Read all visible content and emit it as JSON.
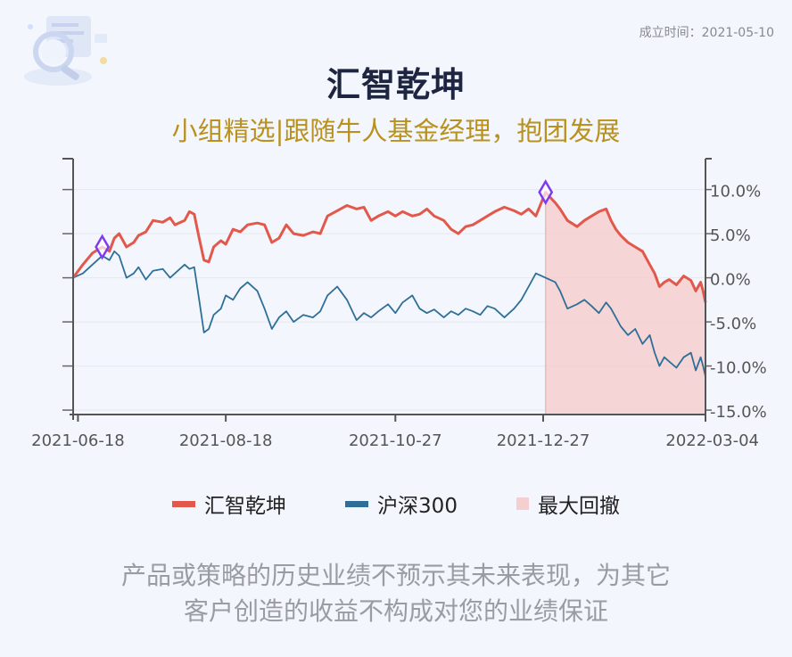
{
  "header": {
    "founded": "成立时间：2021-05-10",
    "title": "汇智乾坤",
    "subtitle": "小组精选|跟随牛人基金经理，抱团发展"
  },
  "colors": {
    "fund": "#e2584a",
    "index": "#2f6f97",
    "drawdown_fill": "#f5cfcf",
    "marker": "#7d3cf0"
  },
  "chart_data": {
    "type": "line",
    "title": "",
    "xlabel": "",
    "ylabel": "",
    "x_ticks": [
      "2021-06-18",
      "2021-08-18",
      "2021-10-27",
      "2021-12-27",
      "2022-03-04"
    ],
    "y_ticks": [
      "10.0%",
      "5.0%",
      "0.0%",
      "-5.0%",
      "-10.0%",
      "-15.0%"
    ],
    "ylim": [
      -15.5,
      13.5
    ],
    "x_range": [
      "2021-06-16",
      "2022-03-04"
    ],
    "grid": true,
    "legend_position": "bottom",
    "series": [
      {
        "name": "汇智乾坤",
        "color": "#e2584a",
        "points": [
          [
            "2021-06-16",
            0.0
          ],
          [
            "2021-06-20",
            1.5
          ],
          [
            "2021-06-24",
            2.8
          ],
          [
            "2021-06-28",
            3.5
          ],
          [
            "2021-07-01",
            3.0
          ],
          [
            "2021-07-03",
            4.5
          ],
          [
            "2021-07-05",
            5.0
          ],
          [
            "2021-07-08",
            3.5
          ],
          [
            "2021-07-11",
            4.0
          ],
          [
            "2021-07-13",
            4.8
          ],
          [
            "2021-07-16",
            5.2
          ],
          [
            "2021-07-19",
            6.5
          ],
          [
            "2021-07-23",
            6.3
          ],
          [
            "2021-07-26",
            6.8
          ],
          [
            "2021-07-28",
            6.0
          ],
          [
            "2021-08-01",
            6.5
          ],
          [
            "2021-08-03",
            7.5
          ],
          [
            "2021-08-05",
            7.2
          ],
          [
            "2021-08-07",
            4.5
          ],
          [
            "2021-08-09",
            2.0
          ],
          [
            "2021-08-11",
            1.8
          ],
          [
            "2021-08-13",
            3.5
          ],
          [
            "2021-08-16",
            4.2
          ],
          [
            "2021-08-18",
            3.8
          ],
          [
            "2021-08-21",
            5.5
          ],
          [
            "2021-08-24",
            5.2
          ],
          [
            "2021-08-27",
            6.0
          ],
          [
            "2021-08-31",
            6.2
          ],
          [
            "2021-09-03",
            6.0
          ],
          [
            "2021-09-06",
            4.0
          ],
          [
            "2021-09-09",
            4.5
          ],
          [
            "2021-09-12",
            6.0
          ],
          [
            "2021-09-15",
            5.0
          ],
          [
            "2021-09-19",
            4.8
          ],
          [
            "2021-09-23",
            5.2
          ],
          [
            "2021-09-26",
            5.0
          ],
          [
            "2021-09-29",
            7.0
          ],
          [
            "2021-10-03",
            7.6
          ],
          [
            "2021-10-07",
            8.2
          ],
          [
            "2021-10-11",
            7.8
          ],
          [
            "2021-10-14",
            8.0
          ],
          [
            "2021-10-17",
            6.5
          ],
          [
            "2021-10-20",
            7.0
          ],
          [
            "2021-10-24",
            7.5
          ],
          [
            "2021-10-27",
            7.0
          ],
          [
            "2021-10-30",
            7.5
          ],
          [
            "2021-11-03",
            7.0
          ],
          [
            "2021-11-06",
            7.2
          ],
          [
            "2021-11-09",
            7.8
          ],
          [
            "2021-11-12",
            7.0
          ],
          [
            "2021-11-16",
            6.5
          ],
          [
            "2021-11-19",
            5.5
          ],
          [
            "2021-11-22",
            5.0
          ],
          [
            "2021-11-25",
            5.8
          ],
          [
            "2021-11-28",
            6.0
          ],
          [
            "2021-12-01",
            6.5
          ],
          [
            "2021-12-04",
            7.0
          ],
          [
            "2021-12-07",
            7.5
          ],
          [
            "2021-12-11",
            8.0
          ],
          [
            "2021-12-15",
            7.6
          ],
          [
            "2021-12-18",
            7.2
          ],
          [
            "2021-12-21",
            7.8
          ],
          [
            "2021-12-24",
            7.0
          ],
          [
            "2021-12-28",
            9.7
          ],
          [
            "2022-01-01",
            8.5
          ],
          [
            "2022-01-03",
            7.8
          ],
          [
            "2022-01-06",
            6.5
          ],
          [
            "2022-01-10",
            5.8
          ],
          [
            "2022-01-13",
            6.5
          ],
          [
            "2022-01-16",
            7.0
          ],
          [
            "2022-01-19",
            7.5
          ],
          [
            "2022-01-22",
            7.8
          ],
          [
            "2022-01-24",
            6.5
          ],
          [
            "2022-01-26",
            5.5
          ],
          [
            "2022-01-28",
            4.8
          ],
          [
            "2022-01-31",
            4.0
          ],
          [
            "2022-02-03",
            3.5
          ],
          [
            "2022-02-06",
            3.0
          ],
          [
            "2022-02-09",
            1.5
          ],
          [
            "2022-02-11",
            0.5
          ],
          [
            "2022-02-13",
            -1.0
          ],
          [
            "2022-02-15",
            -0.5
          ],
          [
            "2022-02-17",
            -0.2
          ],
          [
            "2022-02-20",
            -0.8
          ],
          [
            "2022-02-23",
            0.2
          ],
          [
            "2022-02-26",
            -0.3
          ],
          [
            "2022-02-28",
            -1.5
          ],
          [
            "2022-03-02",
            -0.5
          ],
          [
            "2022-03-03",
            -1.5
          ],
          [
            "2022-03-04",
            -2.8
          ]
        ]
      },
      {
        "name": "沪深300",
        "color": "#2f6f97",
        "points": [
          [
            "2021-06-16",
            0.0
          ],
          [
            "2021-06-20",
            0.5
          ],
          [
            "2021-06-24",
            1.5
          ],
          [
            "2021-06-28",
            2.5
          ],
          [
            "2021-07-01",
            2.0
          ],
          [
            "2021-07-03",
            3.0
          ],
          [
            "2021-07-05",
            2.5
          ],
          [
            "2021-07-08",
            0.0
          ],
          [
            "2021-07-11",
            0.5
          ],
          [
            "2021-07-13",
            1.2
          ],
          [
            "2021-07-16",
            -0.2
          ],
          [
            "2021-07-19",
            0.8
          ],
          [
            "2021-07-23",
            1.0
          ],
          [
            "2021-07-26",
            0.0
          ],
          [
            "2021-07-28",
            0.5
          ],
          [
            "2021-08-01",
            1.5
          ],
          [
            "2021-08-03",
            1.0
          ],
          [
            "2021-08-05",
            1.2
          ],
          [
            "2021-08-07",
            -2.5
          ],
          [
            "2021-08-09",
            -6.2
          ],
          [
            "2021-08-11",
            -5.8
          ],
          [
            "2021-08-13",
            -4.2
          ],
          [
            "2021-08-16",
            -3.5
          ],
          [
            "2021-08-18",
            -2.0
          ],
          [
            "2021-08-21",
            -2.5
          ],
          [
            "2021-08-24",
            -1.2
          ],
          [
            "2021-08-27",
            -0.5
          ],
          [
            "2021-08-31",
            -1.5
          ],
          [
            "2021-09-03",
            -3.5
          ],
          [
            "2021-09-06",
            -5.8
          ],
          [
            "2021-09-09",
            -4.5
          ],
          [
            "2021-09-12",
            -3.8
          ],
          [
            "2021-09-15",
            -5.0
          ],
          [
            "2021-09-19",
            -4.2
          ],
          [
            "2021-09-23",
            -4.5
          ],
          [
            "2021-09-26",
            -3.8
          ],
          [
            "2021-09-29",
            -2.0
          ],
          [
            "2021-10-03",
            -1.0
          ],
          [
            "2021-10-07",
            -2.5
          ],
          [
            "2021-10-11",
            -4.8
          ],
          [
            "2021-10-14",
            -4.0
          ],
          [
            "2021-10-17",
            -4.5
          ],
          [
            "2021-10-20",
            -3.8
          ],
          [
            "2021-10-24",
            -3.0
          ],
          [
            "2021-10-27",
            -4.0
          ],
          [
            "2021-10-30",
            -2.8
          ],
          [
            "2021-11-03",
            -2.0
          ],
          [
            "2021-11-06",
            -3.5
          ],
          [
            "2021-11-09",
            -4.0
          ],
          [
            "2021-11-12",
            -3.6
          ],
          [
            "2021-11-16",
            -4.5
          ],
          [
            "2021-11-19",
            -3.8
          ],
          [
            "2021-11-22",
            -4.2
          ],
          [
            "2021-11-25",
            -3.5
          ],
          [
            "2021-11-28",
            -3.8
          ],
          [
            "2021-12-01",
            -4.2
          ],
          [
            "2021-12-04",
            -3.2
          ],
          [
            "2021-12-07",
            -3.5
          ],
          [
            "2021-12-11",
            -4.5
          ],
          [
            "2021-12-15",
            -3.5
          ],
          [
            "2021-12-18",
            -2.5
          ],
          [
            "2021-12-21",
            -1.0
          ],
          [
            "2021-12-24",
            0.5
          ],
          [
            "2021-12-28",
            0.0
          ],
          [
            "2022-01-01",
            -0.5
          ],
          [
            "2022-01-03",
            -1.5
          ],
          [
            "2022-01-06",
            -3.5
          ],
          [
            "2022-01-10",
            -3.0
          ],
          [
            "2022-01-13",
            -2.5
          ],
          [
            "2022-01-16",
            -3.2
          ],
          [
            "2022-01-19",
            -4.0
          ],
          [
            "2022-01-22",
            -2.8
          ],
          [
            "2022-01-24",
            -3.5
          ],
          [
            "2022-01-26",
            -4.5
          ],
          [
            "2022-01-28",
            -5.5
          ],
          [
            "2022-01-31",
            -6.5
          ],
          [
            "2022-02-03",
            -5.8
          ],
          [
            "2022-02-06",
            -7.5
          ],
          [
            "2022-02-09",
            -6.5
          ],
          [
            "2022-02-11",
            -8.5
          ],
          [
            "2022-02-13",
            -10.0
          ],
          [
            "2022-02-15",
            -9.0
          ],
          [
            "2022-02-17",
            -9.5
          ],
          [
            "2022-02-20",
            -10.2
          ],
          [
            "2022-02-23",
            -9.0
          ],
          [
            "2022-02-26",
            -8.5
          ],
          [
            "2022-02-28",
            -10.5
          ],
          [
            "2022-03-02",
            -9.0
          ],
          [
            "2022-03-03",
            -10.0
          ],
          [
            "2022-03-04",
            -11.2
          ]
        ]
      }
    ],
    "drawdown": {
      "name": "最大回撤",
      "start": "2021-12-28",
      "end": "2022-03-04",
      "peak": 9.7,
      "trough": -2.8
    },
    "markers": [
      {
        "date": "2021-06-28",
        "value": 3.5
      },
      {
        "date": "2021-12-28",
        "value": 9.7
      }
    ]
  },
  "legend": {
    "items": [
      {
        "label": "汇智乾坤",
        "color": "#e2584a"
      },
      {
        "label": "沪深300",
        "color": "#2f6f97"
      },
      {
        "label": "最大回撤",
        "color": "#f5cfcf"
      }
    ]
  },
  "footer": {
    "line1": "产品或策略的历史业绩不预示其未来表现，为其它",
    "line2": "客户创造的收益不构成对您的业绩保证"
  }
}
